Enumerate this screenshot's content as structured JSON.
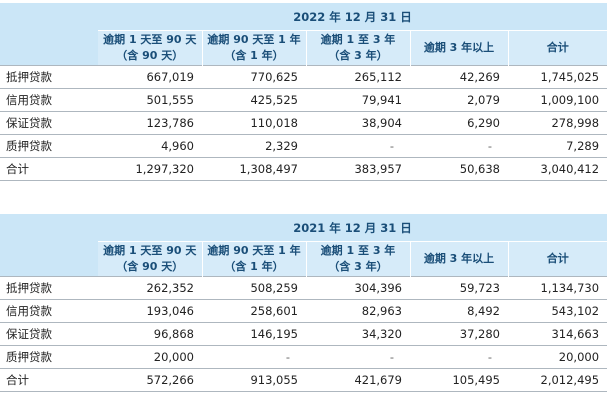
{
  "tables": [
    {
      "period": "2022 年 12 月 31 日",
      "columns": [
        "逾期 1 天至 90 天\n（含 90 天）",
        "逾期 90 天至 1 年\n（含 1 年）",
        "逾期 1 至 3 年\n（含 3 年）",
        "逾期 3 年以上",
        "合计"
      ],
      "col1_line1": "逾期 1 天至 90 天",
      "col1_line2": "（含 90 天）",
      "col2_line1": "逾期 90 天至 1 年",
      "col2_line2": "（含 1 年）",
      "col3_line1": "逾期 1 至 3 年",
      "col3_line2": "（含 3 年）",
      "col4": "逾期 3 年以上",
      "col5": "合计",
      "rows": [
        {
          "label": "抵押贷款",
          "values": [
            "667,019",
            "770,625",
            "265,112",
            "42,269",
            "1,745,025"
          ]
        },
        {
          "label": "信用贷款",
          "values": [
            "501,555",
            "425,525",
            "79,941",
            "2,079",
            "1,009,100"
          ]
        },
        {
          "label": "保证贷款",
          "values": [
            "123,786",
            "110,018",
            "38,904",
            "6,290",
            "278,998"
          ]
        },
        {
          "label": "质押贷款",
          "values": [
            "4,960",
            "2,329",
            "-",
            "-",
            "7,289"
          ]
        },
        {
          "label": "合计",
          "values": [
            "1,297,320",
            "1,308,497",
            "383,957",
            "50,638",
            "3,040,412"
          ]
        }
      ]
    },
    {
      "period": "2021 年 12 月 31 日",
      "col1_line1": "逾期 1 天至 90 天",
      "col1_line2": "（含 90 天）",
      "col2_line1": "逾期 90 天至 1 年",
      "col2_line2": "（含 1 年）",
      "col3_line1": "逾期 1 至 3 年",
      "col3_line2": "（含 3 年）",
      "col4": "逾期 3 年以上",
      "col5": "合计",
      "rows": [
        {
          "label": "抵押贷款",
          "values": [
            "262,352",
            "508,259",
            "304,396",
            "59,723",
            "1,134,730"
          ]
        },
        {
          "label": "信用贷款",
          "values": [
            "193,046",
            "258,601",
            "82,963",
            "8,492",
            "543,102"
          ]
        },
        {
          "label": "保证贷款",
          "values": [
            "96,868",
            "146,195",
            "34,320",
            "37,280",
            "314,663"
          ]
        },
        {
          "label": "质押贷款",
          "values": [
            "20,000",
            "-",
            "-",
            "-",
            "20,000"
          ]
        },
        {
          "label": "合计",
          "values": [
            "572,266",
            "913,055",
            "421,679",
            "105,495",
            "2,012,495"
          ]
        }
      ]
    }
  ]
}
